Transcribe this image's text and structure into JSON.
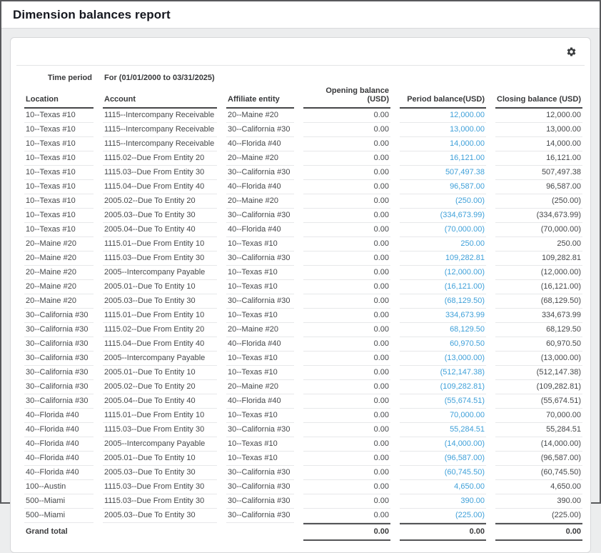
{
  "page": {
    "title": "Dimension balances report"
  },
  "toolbar": {
    "settings_icon": "gear-icon"
  },
  "colors": {
    "link_blue": "#3fa0d9",
    "header_rule": "#454648",
    "window_border": "#58595c",
    "page_background": "#ecedee"
  },
  "report": {
    "time_period_label": "Time period",
    "time_period_value": "For (01/01/2000 to 03/31/2025)",
    "columns": {
      "location": "Location",
      "account": "Account",
      "affiliate": "Affiliate entity",
      "opening": "Opening balance (USD)",
      "period": "Period balance(USD)",
      "closing": "Closing balance (USD)"
    },
    "rows": [
      {
        "location": "10--Texas #10",
        "account": "1115--Intercompany Receivable",
        "affiliate": "20--Maine #20",
        "opening": "0.00",
        "period": "12,000.00",
        "closing": "12,000.00"
      },
      {
        "location": "10--Texas #10",
        "account": "1115--Intercompany Receivable",
        "affiliate": "30--California #30",
        "opening": "0.00",
        "period": "13,000.00",
        "closing": "13,000.00"
      },
      {
        "location": "10--Texas #10",
        "account": "1115--Intercompany Receivable",
        "affiliate": "40--Florida #40",
        "opening": "0.00",
        "period": "14,000.00",
        "closing": "14,000.00"
      },
      {
        "location": "10--Texas #10",
        "account": "1115.02--Due From Entity 20",
        "affiliate": "20--Maine #20",
        "opening": "0.00",
        "period": "16,121.00",
        "closing": "16,121.00"
      },
      {
        "location": "10--Texas #10",
        "account": "1115.03--Due From Entity 30",
        "affiliate": "30--California #30",
        "opening": "0.00",
        "period": "507,497.38",
        "closing": "507,497.38"
      },
      {
        "location": "10--Texas #10",
        "account": "1115.04--Due From Entity 40",
        "affiliate": "40--Florida #40",
        "opening": "0.00",
        "period": "96,587.00",
        "closing": "96,587.00"
      },
      {
        "location": "10--Texas #10",
        "account": "2005.02--Due To Entity 20",
        "affiliate": "20--Maine #20",
        "opening": "0.00",
        "period": "(250.00)",
        "closing": "(250.00)"
      },
      {
        "location": "10--Texas #10",
        "account": "2005.03--Due To Entity 30",
        "affiliate": "30--California #30",
        "opening": "0.00",
        "period": "(334,673.99)",
        "closing": "(334,673.99)"
      },
      {
        "location": "10--Texas #10",
        "account": "2005.04--Due To Entity 40",
        "affiliate": "40--Florida #40",
        "opening": "0.00",
        "period": "(70,000.00)",
        "closing": "(70,000.00)"
      },
      {
        "location": "20--Maine #20",
        "account": "1115.01--Due From Entity 10",
        "affiliate": "10--Texas #10",
        "opening": "0.00",
        "period": "250.00",
        "closing": "250.00"
      },
      {
        "location": "20--Maine #20",
        "account": "1115.03--Due From Entity 30",
        "affiliate": "30--California #30",
        "opening": "0.00",
        "period": "109,282.81",
        "closing": "109,282.81"
      },
      {
        "location": "20--Maine #20",
        "account": "2005--Intercompany Payable",
        "affiliate": "10--Texas #10",
        "opening": "0.00",
        "period": "(12,000.00)",
        "closing": "(12,000.00)"
      },
      {
        "location": "20--Maine #20",
        "account": "2005.01--Due To Entity 10",
        "affiliate": "10--Texas #10",
        "opening": "0.00",
        "period": "(16,121.00)",
        "closing": "(16,121.00)"
      },
      {
        "location": "20--Maine #20",
        "account": "2005.03--Due To Entity 30",
        "affiliate": "30--California #30",
        "opening": "0.00",
        "period": "(68,129.50)",
        "closing": "(68,129.50)"
      },
      {
        "location": "30--California #30",
        "account": "1115.01--Due From Entity 10",
        "affiliate": "10--Texas #10",
        "opening": "0.00",
        "period": "334,673.99",
        "closing": "334,673.99"
      },
      {
        "location": "30--California #30",
        "account": "1115.02--Due From Entity 20",
        "affiliate": "20--Maine #20",
        "opening": "0.00",
        "period": "68,129.50",
        "closing": "68,129.50"
      },
      {
        "location": "30--California #30",
        "account": "1115.04--Due From Entity 40",
        "affiliate": "40--Florida #40",
        "opening": "0.00",
        "period": "60,970.50",
        "closing": "60,970.50"
      },
      {
        "location": "30--California #30",
        "account": "2005--Intercompany Payable",
        "affiliate": "10--Texas #10",
        "opening": "0.00",
        "period": "(13,000.00)",
        "closing": "(13,000.00)"
      },
      {
        "location": "30--California #30",
        "account": "2005.01--Due To Entity 10",
        "affiliate": "10--Texas #10",
        "opening": "0.00",
        "period": "(512,147.38)",
        "closing": "(512,147.38)"
      },
      {
        "location": "30--California #30",
        "account": "2005.02--Due To Entity 20",
        "affiliate": "20--Maine #20",
        "opening": "0.00",
        "period": "(109,282.81)",
        "closing": "(109,282.81)"
      },
      {
        "location": "30--California #30",
        "account": "2005.04--Due To Entity 40",
        "affiliate": "40--Florida #40",
        "opening": "0.00",
        "period": "(55,674.51)",
        "closing": "(55,674.51)"
      },
      {
        "location": "40--Florida #40",
        "account": "1115.01--Due From Entity 10",
        "affiliate": "10--Texas #10",
        "opening": "0.00",
        "period": "70,000.00",
        "closing": "70,000.00"
      },
      {
        "location": "40--Florida #40",
        "account": "1115.03--Due From Entity 30",
        "affiliate": "30--California #30",
        "opening": "0.00",
        "period": "55,284.51",
        "closing": "55,284.51"
      },
      {
        "location": "40--Florida #40",
        "account": "2005--Intercompany Payable",
        "affiliate": "10--Texas #10",
        "opening": "0.00",
        "period": "(14,000.00)",
        "closing": "(14,000.00)"
      },
      {
        "location": "40--Florida #40",
        "account": "2005.01--Due To Entity 10",
        "affiliate": "10--Texas #10",
        "opening": "0.00",
        "period": "(96,587.00)",
        "closing": "(96,587.00)"
      },
      {
        "location": "40--Florida #40",
        "account": "2005.03--Due To Entity 30",
        "affiliate": "30--California #30",
        "opening": "0.00",
        "period": "(60,745.50)",
        "closing": "(60,745.50)"
      },
      {
        "location": "100--Austin",
        "account": "1115.03--Due From Entity 30",
        "affiliate": "30--California #30",
        "opening": "0.00",
        "period": "4,650.00",
        "closing": "4,650.00"
      },
      {
        "location": "500--Miami",
        "account": "1115.03--Due From Entity 30",
        "affiliate": "30--California #30",
        "opening": "0.00",
        "period": "390.00",
        "closing": "390.00"
      },
      {
        "location": "500--Miami",
        "account": "2005.03--Due To Entity 30",
        "affiliate": "30--California #30",
        "opening": "0.00",
        "period": "(225.00)",
        "closing": "(225.00)"
      }
    ],
    "grand_total": {
      "label": "Grand total",
      "opening": "0.00",
      "period": "0.00",
      "closing": "0.00"
    }
  }
}
